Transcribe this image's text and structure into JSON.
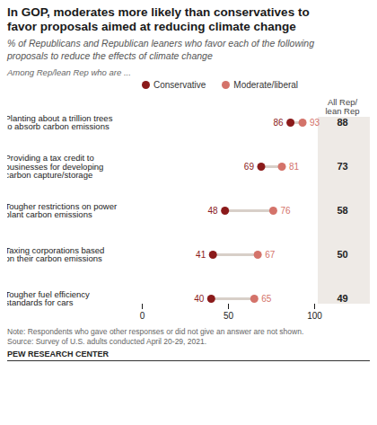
{
  "chart_data": {
    "type": "dumbbell",
    "title": "In GOP, moderates more likely than conservatives to\nfavor proposals aimed at reducing climate change",
    "subtitle": "% of Republicans and Republican leaners who favor each of the following\nproposals to reduce the effects of climate change",
    "annotations": [
      "Among Rep/lean Rep who are ..."
    ],
    "caption": "Note: Respondents who gave other responses or did not give an answer are not shown.\nSource: Survey of U.S. adults conducted April 20-29, 2021.",
    "source": "PEW RESEARCH CENTER",
    "categories": [
      "Planting about a trillion trees\nto absorb carbon emissions",
      "Providing a tax credit to\nbusinesses for developing\ncarbon capture/storage",
      "Tougher restrictions on power\nplant carbon emissions",
      "Taxing corporations based\non their carbon emissions",
      "Tougher fuel efficiency\nstandards for cars"
    ],
    "series": [
      {
        "name": "Conservative",
        "color": "#8B1A1A",
        "values": [
          86,
          69,
          48,
          41,
          40
        ]
      },
      {
        "name": "Moderate/liberal",
        "color": "#D4736A",
        "values": [
          93,
          81,
          76,
          67,
          65
        ]
      },
      {
        "name": "All Rep/\nlean Rep",
        "type": "text",
        "values": [
          88,
          73,
          58,
          50,
          49
        ]
      }
    ],
    "xlim": [
      0,
      100
    ],
    "xticks": [
      0,
      50,
      100
    ],
    "grid": false,
    "legend": "top",
    "data_labels": true
  }
}
